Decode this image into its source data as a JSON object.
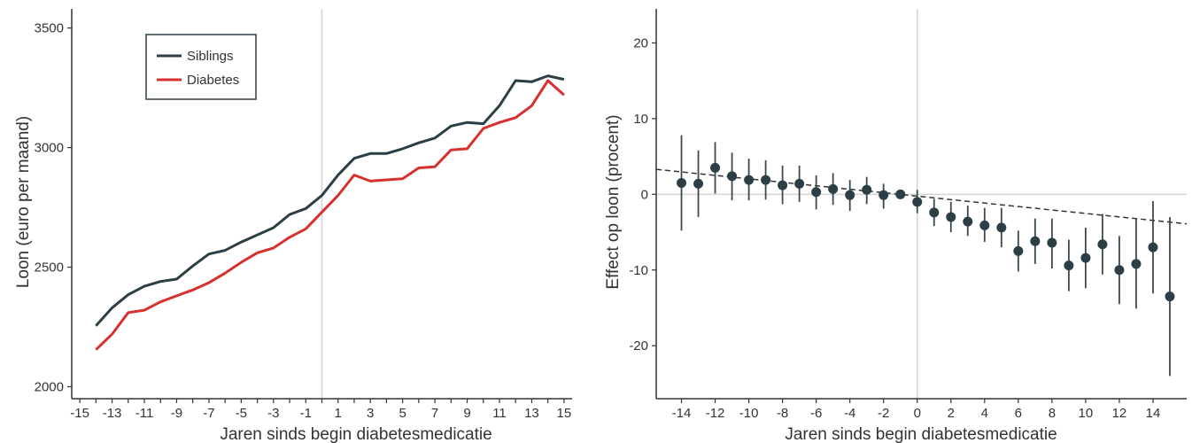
{
  "colors": {
    "siblings": "#2c3e46",
    "diabetes": "#d7312f",
    "axis": "#333333",
    "refline": "#d4d4d4",
    "errorbar": "#3a4a52",
    "trend": "#333333"
  },
  "chart_data": [
    {
      "type": "line",
      "title": "",
      "xlabel": "Jaren sinds begin diabetesmedicatie",
      "ylabel": "Loon (euro per maand)",
      "xlim": [
        -15.5,
        15.5
      ],
      "ylim": [
        1950,
        3580
      ],
      "xticks": [
        -15,
        -14,
        -13,
        -12,
        -11,
        -10,
        -9,
        -8,
        -7,
        -6,
        -5,
        -4,
        -3,
        -2,
        -1,
        0,
        1,
        2,
        3,
        4,
        5,
        6,
        7,
        8,
        9,
        10,
        11,
        12,
        13,
        14,
        15
      ],
      "xtick_labels": [
        "-15",
        "",
        "-13",
        "",
        "-11",
        "",
        "-9",
        "",
        "-7",
        "",
        "-5",
        "",
        "-3",
        "",
        "-1",
        "",
        "1",
        "",
        "3",
        "",
        "5",
        "",
        "7",
        "",
        "9",
        "",
        "11",
        "",
        "13",
        "",
        "15"
      ],
      "yticks": [
        2000,
        2500,
        3000,
        3500
      ],
      "ytick_labels": [
        "2000",
        "2500",
        "3000",
        "3500"
      ],
      "vline": 0,
      "grid": false,
      "legend": "top-left",
      "x": [
        -14,
        -13,
        -12,
        -11,
        -10,
        -9,
        -8,
        -7,
        -6,
        -5,
        -4,
        -3,
        -2,
        -1,
        0,
        1,
        2,
        3,
        4,
        5,
        6,
        7,
        8,
        9,
        10,
        11,
        12,
        13,
        14,
        15
      ],
      "series": [
        {
          "name": "Siblings",
          "color_key": "siblings",
          "values": [
            2255,
            2330,
            2385,
            2420,
            2440,
            2450,
            2505,
            2555,
            2570,
            2605,
            2635,
            2665,
            2720,
            2745,
            2800,
            2885,
            2955,
            2975,
            2975,
            2995,
            3020,
            3040,
            3090,
            3105,
            3100,
            3175,
            3280,
            3275,
            3300,
            3285
          ]
        },
        {
          "name": "Diabetes",
          "color_key": "diabetes",
          "values": [
            2155,
            2220,
            2310,
            2320,
            2355,
            2380,
            2405,
            2435,
            2475,
            2520,
            2560,
            2580,
            2625,
            2660,
            2730,
            2800,
            2885,
            2860,
            2865,
            2870,
            2915,
            2920,
            2990,
            2995,
            3080,
            3105,
            3125,
            3175,
            3280,
            3220
          ]
        }
      ]
    },
    {
      "type": "scatter",
      "title": "",
      "xlabel": "Jaren sinds begin diabetesmedicatie",
      "ylabel": "Effect op loon (procent)",
      "xlim": [
        -15.5,
        16
      ],
      "ylim": [
        -27,
        24.5
      ],
      "xticks": [
        -14,
        -12,
        -10,
        -8,
        -6,
        -4,
        -2,
        0,
        2,
        4,
        6,
        8,
        10,
        12,
        14
      ],
      "xtick_labels": [
        "-14",
        "-12",
        "-10",
        "-8",
        "-6",
        "-4",
        "-2",
        "0",
        "2",
        "4",
        "6",
        "8",
        "10",
        "12",
        "14"
      ],
      "yticks": [
        -20,
        -10,
        0,
        10,
        20
      ],
      "ytick_labels": [
        "-20",
        "-10",
        "0",
        "10",
        "20"
      ],
      "vline": 0,
      "hline": 0,
      "grid": false,
      "trend_line": {
        "x": [
          -15.5,
          16
        ],
        "y": [
          3.3,
          -3.9
        ]
      },
      "points": [
        {
          "x": -14,
          "y": 1.5,
          "lo": -4.8,
          "hi": 7.8
        },
        {
          "x": -13,
          "y": 1.4,
          "lo": -3.0,
          "hi": 5.8
        },
        {
          "x": -12,
          "y": 3.5,
          "lo": 0.1,
          "hi": 6.9
        },
        {
          "x": -11,
          "y": 2.4,
          "lo": -0.8,
          "hi": 5.5
        },
        {
          "x": -10,
          "y": 1.9,
          "lo": -0.8,
          "hi": 4.7
        },
        {
          "x": -9,
          "y": 1.9,
          "lo": -0.7,
          "hi": 4.5
        },
        {
          "x": -8,
          "y": 1.2,
          "lo": -1.3,
          "hi": 3.8
        },
        {
          "x": -7,
          "y": 1.4,
          "lo": -1.0,
          "hi": 3.8
        },
        {
          "x": -6,
          "y": 0.3,
          "lo": -2.0,
          "hi": 2.5
        },
        {
          "x": -5,
          "y": 0.7,
          "lo": -1.4,
          "hi": 2.8
        },
        {
          "x": -4,
          "y": -0.1,
          "lo": -2.2,
          "hi": 1.9
        },
        {
          "x": -3,
          "y": 0.6,
          "lo": -1.3,
          "hi": 2.3
        },
        {
          "x": -2,
          "y": -0.1,
          "lo": -1.9,
          "hi": 1.4
        },
        {
          "x": -1,
          "y": 0.0,
          "lo": 0.0,
          "hi": 0.0
        },
        {
          "x": 0,
          "y": -1.0,
          "lo": -2.5,
          "hi": 0.6
        },
        {
          "x": 1,
          "y": -2.4,
          "lo": -4.2,
          "hi": -0.6
        },
        {
          "x": 2,
          "y": -3.0,
          "lo": -5.0,
          "hi": -1.0
        },
        {
          "x": 3,
          "y": -3.6,
          "lo": -5.5,
          "hi": -1.5
        },
        {
          "x": 4,
          "y": -4.1,
          "lo": -6.3,
          "hi": -1.8
        },
        {
          "x": 5,
          "y": -4.4,
          "lo": -7.0,
          "hi": -1.8
        },
        {
          "x": 6,
          "y": -7.5,
          "lo": -10.2,
          "hi": -4.8
        },
        {
          "x": 7,
          "y": -6.2,
          "lo": -9.2,
          "hi": -3.2
        },
        {
          "x": 8,
          "y": -6.4,
          "lo": -9.8,
          "hi": -3.2
        },
        {
          "x": 9,
          "y": -9.4,
          "lo": -12.8,
          "hi": -6.0
        },
        {
          "x": 10,
          "y": -8.4,
          "lo": -12.4,
          "hi": -4.4
        },
        {
          "x": 11,
          "y": -6.6,
          "lo": -10.6,
          "hi": -2.6
        },
        {
          "x": 12,
          "y": -10.0,
          "lo": -14.5,
          "hi": -5.5
        },
        {
          "x": 13,
          "y": -9.2,
          "lo": -15.1,
          "hi": -3.2
        },
        {
          "x": 14,
          "y": -7.0,
          "lo": -13.1,
          "hi": -0.9
        },
        {
          "x": 15,
          "y": -13.5,
          "lo": -24.0,
          "hi": -3.0
        }
      ]
    }
  ]
}
